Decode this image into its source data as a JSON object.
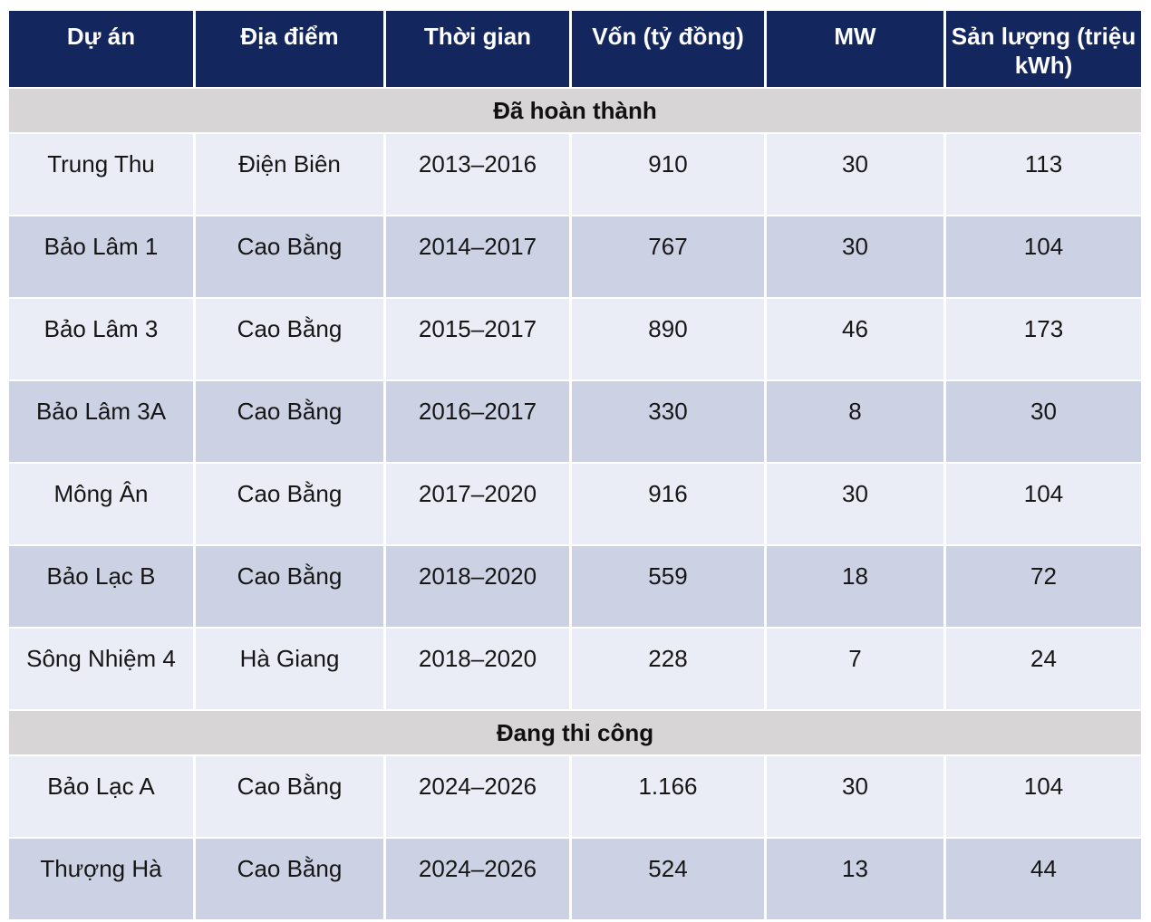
{
  "table": {
    "columns": [
      "Dự án",
      "Địa điểm",
      "Thời gian",
      "Vốn (tỷ đồng)",
      "MW",
      "Sản lượng (triệu kWh)"
    ],
    "sections": [
      {
        "title": "Đã hoàn thành",
        "rows": [
          [
            "Trung Thu",
            "Điện Biên",
            "2013–2016",
            "910",
            "30",
            "113"
          ],
          [
            "Bảo Lâm 1",
            "Cao Bằng",
            "2014–2017",
            "767",
            "30",
            "104"
          ],
          [
            "Bảo Lâm 3",
            "Cao Bằng",
            "2015–2017",
            "890",
            "46",
            "173"
          ],
          [
            "Bảo Lâm 3A",
            "Cao Bằng",
            "2016–2017",
            "330",
            "8",
            "30"
          ],
          [
            "Mông Ân",
            "Cao Bằng",
            "2017–2020",
            "916",
            "30",
            "104"
          ],
          [
            "Bảo Lạc B",
            "Cao Bằng",
            "2018–2020",
            "559",
            "18",
            "72"
          ],
          [
            "Sông Nhiệm 4",
            "Hà Giang",
            "2018–2020",
            "228",
            "7",
            "24"
          ]
        ]
      },
      {
        "title": "Đang thi công",
        "rows": [
          [
            "Bảo Lạc A",
            "Cao Bằng",
            "2024–2026",
            "1.166",
            "30",
            "104"
          ],
          [
            "Thượng Hà",
            "Cao Bằng",
            "2024–2026",
            "524",
            "13",
            "44"
          ]
        ]
      }
    ]
  },
  "colors": {
    "header_background": "#14265e",
    "header_text": "#ffffff",
    "section_header_background": "#d7d5d5",
    "row_light": "#ebedf6",
    "row_dark": "#ccd2e4",
    "body_text": "#161616",
    "grid_lines": "#ffffff"
  }
}
